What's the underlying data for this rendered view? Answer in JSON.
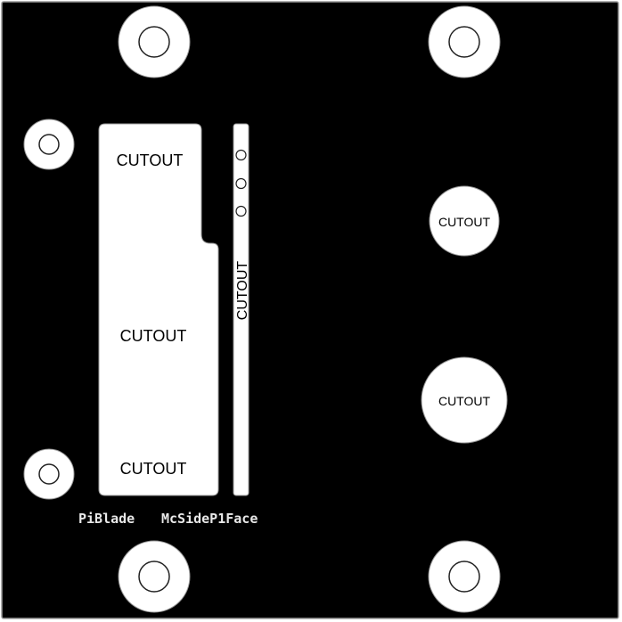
{
  "board": {
    "background_color": "#000000",
    "cutout_color": "#ffffff",
    "outline_color": "#9a9a9a"
  },
  "cutouts": {
    "slot_top_label": "CUTOUT",
    "slot_middle_label": "CUTOUT",
    "slot_bottom_label": "CUTOUT",
    "narrow_slot_label": "CUTOUT",
    "round_upper_label": "CUTOUT",
    "round_lower_label": "CUTOUT"
  },
  "silkscreen": {
    "left_label": "PiBlade",
    "right_label": "McSideP1Face"
  }
}
